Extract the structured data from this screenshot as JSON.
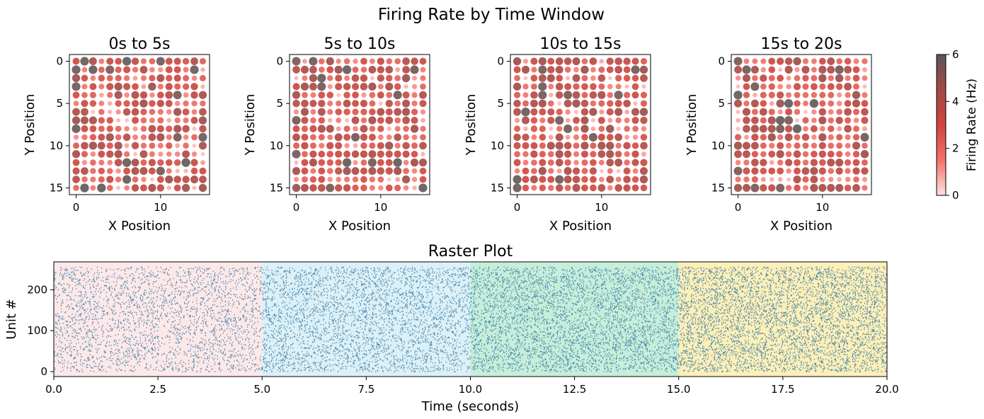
{
  "figure": {
    "title": "Firing Rate by Time Window"
  },
  "chart_data": [
    {
      "type": "scatter",
      "title": "0s to 5s",
      "xlabel": "X Position",
      "ylabel": "Y Position",
      "xlim": [
        -0.8,
        15.8
      ],
      "ylim": [
        15.8,
        -0.8
      ],
      "xticks": [
        0,
        10
      ],
      "yticks": [
        0,
        5,
        10,
        15
      ],
      "grid_size": 16,
      "seed": 11,
      "high_points": [
        [
          0,
          1
        ],
        [
          2,
          1
        ],
        [
          0,
          3
        ],
        [
          1,
          0
        ],
        [
          4,
          1
        ],
        [
          6,
          0
        ],
        [
          10,
          0
        ],
        [
          12,
          4
        ],
        [
          14,
          1
        ],
        [
          0,
          8
        ],
        [
          15,
          9
        ],
        [
          12,
          9
        ],
        [
          3,
          15
        ],
        [
          1,
          15
        ],
        [
          6,
          12
        ],
        [
          6,
          14
        ],
        [
          10,
          13
        ],
        [
          13,
          12
        ]
      ]
    },
    {
      "type": "scatter",
      "title": "5s to 10s",
      "xlabel": "X Position",
      "ylabel": "Y Position",
      "xlim": [
        -0.8,
        15.8
      ],
      "ylim": [
        15.8,
        -0.8
      ],
      "xticks": [
        0,
        10
      ],
      "yticks": [
        0,
        5,
        10,
        15
      ],
      "grid_size": 16,
      "seed": 23,
      "high_points": [
        [
          0,
          0
        ],
        [
          2,
          0
        ],
        [
          6,
          1
        ],
        [
          3,
          2
        ],
        [
          3,
          3
        ],
        [
          14,
          1
        ],
        [
          12,
          4
        ],
        [
          0,
          11
        ],
        [
          4,
          15
        ],
        [
          6,
          12
        ],
        [
          7,
          9
        ],
        [
          9,
          12
        ],
        [
          12,
          12
        ],
        [
          15,
          15
        ],
        [
          0,
          7
        ]
      ]
    },
    {
      "type": "scatter",
      "title": "10s to 15s",
      "xlabel": "X Position",
      "ylabel": "Y Position",
      "xlim": [
        -0.8,
        15.8
      ],
      "ylim": [
        15.8,
        -0.8
      ],
      "xticks": [
        0,
        10
      ],
      "yticks": [
        0,
        5,
        10,
        15
      ],
      "grid_size": 16,
      "seed": 37,
      "high_points": [
        [
          3,
          3
        ],
        [
          3,
          4
        ],
        [
          6,
          4
        ],
        [
          12,
          4
        ],
        [
          14,
          1
        ],
        [
          1,
          6
        ],
        [
          5,
          7
        ],
        [
          6,
          8
        ],
        [
          9,
          9
        ],
        [
          0,
          14
        ],
        [
          5,
          14
        ],
        [
          0,
          15
        ],
        [
          3,
          1
        ]
      ]
    },
    {
      "type": "scatter",
      "title": "15s to 20s",
      "xlabel": "X Position",
      "ylabel": "Y Position",
      "xlim": [
        -0.8,
        15.8
      ],
      "ylim": [
        15.8,
        -0.8
      ],
      "xticks": [
        0,
        10
      ],
      "yticks": [
        0,
        5,
        10,
        15
      ],
      "grid_size": 16,
      "seed": 53,
      "high_points": [
        [
          0,
          0
        ],
        [
          1,
          1
        ],
        [
          2,
          3
        ],
        [
          0,
          4
        ],
        [
          5,
          7
        ],
        [
          6,
          7
        ],
        [
          5,
          8
        ],
        [
          7,
          8
        ],
        [
          12,
          1
        ],
        [
          15,
          9
        ],
        [
          6,
          5
        ],
        [
          9,
          5
        ],
        [
          0,
          13
        ],
        [
          2,
          15
        ],
        [
          5,
          15
        ]
      ]
    },
    {
      "type": "colorbar",
      "label": "Firing Rate (Hz)",
      "range": [
        0,
        6
      ],
      "ticks": [
        0,
        2,
        4,
        6
      ],
      "colors": [
        "#fde0e0",
        "#f4726a",
        "#d0453c",
        "#a54844",
        "#595959"
      ]
    },
    {
      "type": "scatter",
      "subtype": "raster",
      "title": "Raster Plot",
      "xlabel": "Time (seconds)",
      "ylabel": "Unit #",
      "xlim": [
        0,
        20
      ],
      "ylim": [
        -12,
        268
      ],
      "xticks": [
        0.0,
        2.5,
        5.0,
        7.5,
        10.0,
        12.5,
        15.0,
        17.5,
        20.0
      ],
      "xtick_labels": [
        "0.0",
        "2.5",
        "5.0",
        "7.5",
        "10.0",
        "12.5",
        "15.0",
        "17.5",
        "20.0"
      ],
      "yticks": [
        0,
        100,
        200
      ],
      "units": 256,
      "spike_color": "#3f7fa8",
      "windows": [
        {
          "start": 0,
          "end": 5,
          "color": "#fde8e8",
          "spikes_per_unit": 11
        },
        {
          "start": 5,
          "end": 10,
          "color": "#dcf0f7",
          "spikes_per_unit": 14
        },
        {
          "start": 10,
          "end": 15,
          "color": "#c6eed9",
          "spikes_per_unit": 17
        },
        {
          "start": 15,
          "end": 20,
          "color": "#fcefb8",
          "spikes_per_unit": 19
        }
      ]
    }
  ]
}
